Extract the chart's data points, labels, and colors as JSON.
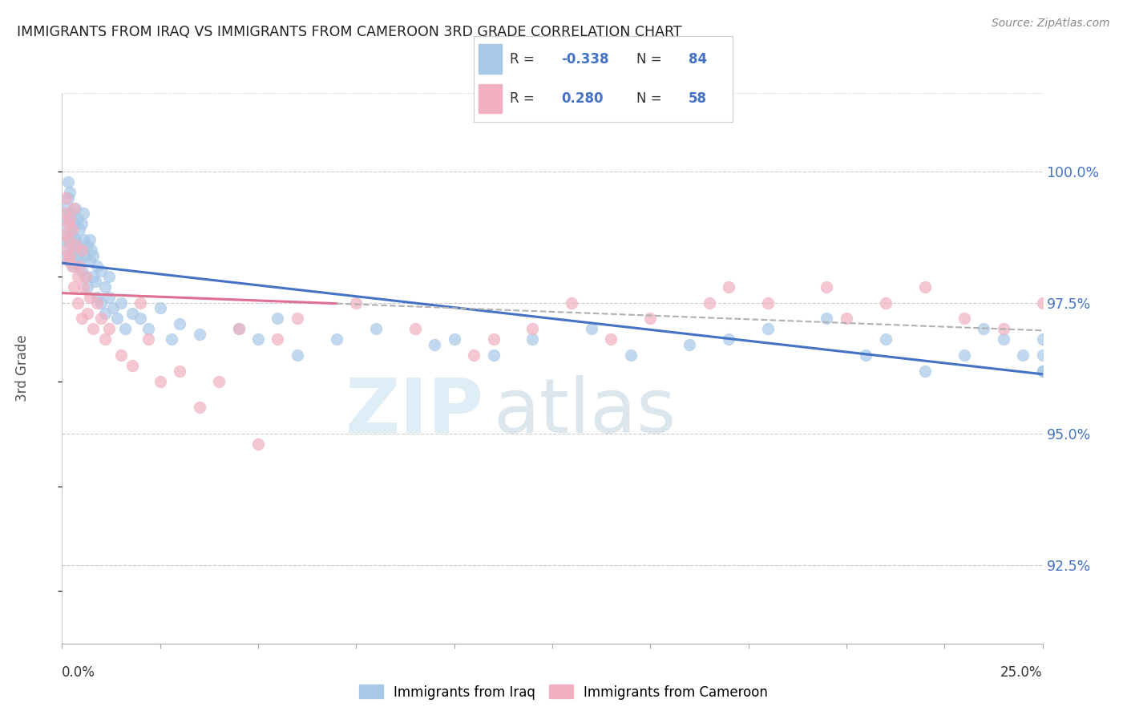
{
  "title": "IMMIGRANTS FROM IRAQ VS IMMIGRANTS FROM CAMEROON 3RD GRADE CORRELATION CHART",
  "source": "Source: ZipAtlas.com",
  "ylabel": "3rd Grade",
  "y_ticks": [
    92.5,
    95.0,
    97.5,
    100.0
  ],
  "y_tick_labels": [
    "92.5%",
    "95.0%",
    "97.5%",
    "100.0%"
  ],
  "x_range": [
    0.0,
    25.0
  ],
  "y_range": [
    91.0,
    101.5
  ],
  "legend_r_iraq": "-0.338",
  "legend_n_iraq": "84",
  "legend_r_cameroon": "0.280",
  "legend_n_cameroon": "58",
  "color_iraq": "#a8c8e8",
  "color_cameroon": "#f0b0c0",
  "trendline_iraq_color": "#4472c4",
  "trendline_cameroon_color": "#e07090",
  "trendline_dashed_color": "#b0b0b0",
  "watermark_zip_color": "#c8dff0",
  "watermark_atlas_color": "#b8ccd8",
  "background_color": "#ffffff",
  "iraq_x": [
    0.05,
    0.08,
    0.1,
    0.1,
    0.15,
    0.15,
    0.15,
    0.18,
    0.2,
    0.2,
    0.2,
    0.25,
    0.25,
    0.3,
    0.3,
    0.3,
    0.35,
    0.35,
    0.4,
    0.4,
    0.4,
    0.45,
    0.45,
    0.5,
    0.5,
    0.5,
    0.55,
    0.55,
    0.6,
    0.6,
    0.65,
    0.65,
    0.7,
    0.7,
    0.75,
    0.8,
    0.8,
    0.85,
    0.9,
    0.9,
    1.0,
    1.0,
    1.1,
    1.1,
    1.2,
    1.2,
    1.3,
    1.4,
    1.5,
    1.6,
    1.8,
    2.0,
    2.2,
    2.5,
    2.8,
    3.0,
    3.5,
    4.5,
    5.0,
    5.5,
    6.0,
    7.0,
    8.0,
    9.5,
    10.0,
    11.0,
    12.0,
    13.5,
    14.5,
    16.0,
    17.0,
    18.0,
    19.5,
    20.5,
    21.0,
    22.0,
    23.0,
    23.5,
    24.0,
    24.5,
    25.0,
    25.0,
    25.0,
    25.0
  ],
  "iraq_y": [
    99.1,
    98.7,
    99.3,
    98.4,
    99.5,
    98.9,
    99.8,
    98.6,
    99.2,
    98.3,
    99.6,
    98.8,
    99.1,
    98.5,
    99.0,
    98.2,
    98.7,
    99.3,
    98.4,
    99.1,
    98.6,
    98.9,
    98.3,
    99.0,
    98.5,
    98.1,
    98.7,
    99.2,
    98.4,
    98.0,
    98.6,
    97.8,
    98.3,
    98.7,
    98.5,
    98.0,
    98.4,
    97.9,
    98.2,
    97.6,
    98.1,
    97.5,
    97.8,
    97.3,
    97.6,
    98.0,
    97.4,
    97.2,
    97.5,
    97.0,
    97.3,
    97.2,
    97.0,
    97.4,
    96.8,
    97.1,
    96.9,
    97.0,
    96.8,
    97.2,
    96.5,
    96.8,
    97.0,
    96.7,
    96.8,
    96.5,
    96.8,
    97.0,
    96.5,
    96.7,
    96.8,
    97.0,
    97.2,
    96.5,
    96.8,
    96.2,
    96.5,
    97.0,
    96.8,
    96.5,
    96.2,
    96.8,
    96.5,
    96.2
  ],
  "cameroon_x": [
    0.05,
    0.08,
    0.1,
    0.12,
    0.15,
    0.15,
    0.18,
    0.2,
    0.2,
    0.25,
    0.25,
    0.3,
    0.3,
    0.35,
    0.4,
    0.4,
    0.45,
    0.5,
    0.5,
    0.55,
    0.6,
    0.65,
    0.7,
    0.8,
    0.9,
    1.0,
    1.1,
    1.2,
    1.5,
    1.8,
    2.0,
    2.2,
    2.5,
    3.0,
    3.5,
    4.0,
    4.5,
    5.0,
    5.5,
    6.0,
    7.5,
    9.0,
    10.5,
    11.0,
    12.0,
    13.0,
    14.0,
    15.0,
    16.5,
    17.0,
    18.0,
    19.5,
    20.0,
    21.0,
    22.0,
    23.0,
    24.0,
    25.0
  ],
  "cameroon_y": [
    99.2,
    98.8,
    99.5,
    98.5,
    99.0,
    98.3,
    98.7,
    99.1,
    98.4,
    98.9,
    98.2,
    99.3,
    97.8,
    98.6,
    98.0,
    97.5,
    98.2,
    98.5,
    97.2,
    97.8,
    98.0,
    97.3,
    97.6,
    97.0,
    97.5,
    97.2,
    96.8,
    97.0,
    96.5,
    96.3,
    97.5,
    96.8,
    96.0,
    96.2,
    95.5,
    96.0,
    97.0,
    94.8,
    96.8,
    97.2,
    97.5,
    97.0,
    96.5,
    96.8,
    97.0,
    97.5,
    96.8,
    97.2,
    97.5,
    97.8,
    97.5,
    97.8,
    97.2,
    97.5,
    97.8,
    97.2,
    97.0,
    97.5
  ]
}
